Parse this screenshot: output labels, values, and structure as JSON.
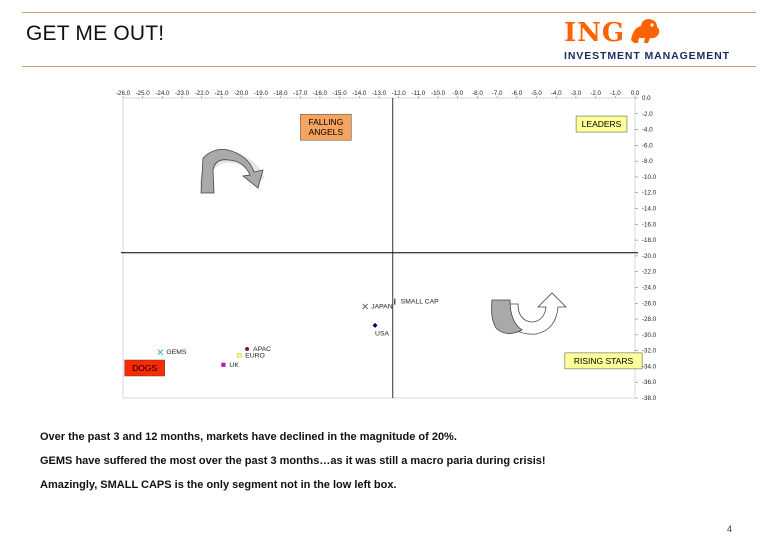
{
  "page": {
    "title": "GET ME OUT!",
    "page_number": "4",
    "rule_color": "#c8a070"
  },
  "logo": {
    "name": "ING",
    "subtitle": "INVESTMENT MANAGEMENT",
    "brand_color": "#ff6200",
    "sub_color": "#1a2c5e",
    "icon": "lion-icon"
  },
  "notes": [
    "Over the past 3 and 12 months, markets have declined in the magnitude of 20%.",
    "GEMS have suffered the most over the past 3 months…as it was still  a macro paria during crisis!",
    "Amazingly, SMALL CAPS is the only segment not in the low left box."
  ],
  "chart_data": {
    "type": "scatter",
    "title": "",
    "xlabel": "",
    "ylabel": "",
    "xlim": [
      -26,
      0
    ],
    "ylim": [
      -38,
      0
    ],
    "x_tick_labels": [
      "-26.0",
      "-25.0",
      "-24.0",
      "-23.0",
      "-22.0",
      "-21.0",
      "-20.0",
      "-19.0",
      "-18.0",
      "-17.0",
      "-16.0",
      "-15.0",
      "-14.0",
      "-13.0",
      "-12.0",
      "-11.0",
      "-10.0",
      "-9.0",
      "-8.0",
      "-7.0",
      "-6.0",
      "-5.0",
      "-4.0",
      "-3.0",
      "-2.0",
      "-1.0",
      "0.0"
    ],
    "y_tick_labels": [
      "0.0",
      "-2.0",
      "-4.0",
      "-6.0",
      "-8.0",
      "-10.0",
      "-12.0",
      "-14.0",
      "-16.0",
      "-18.0",
      "-20.0",
      "-22.0",
      "-24.0",
      "-26.0",
      "-28.0",
      "-30.0",
      "-32.0",
      "-34.0",
      "-36.0",
      "-38.0"
    ],
    "x_axis_crosses_y": -19.6,
    "y_axis_crosses_x": -12.3,
    "grid": false,
    "quadrants": [
      {
        "label_lines": [
          "FALLING",
          "ANGELS"
        ],
        "fill": "#f4a460",
        "x": -15.7,
        "y": -3.7
      },
      {
        "label_lines": [
          "LEADERS"
        ],
        "fill": "#ffff99",
        "x": -1.7,
        "y": -3.3
      },
      {
        "label_lines": [
          "RISING STARS"
        ],
        "fill": "#ffff99",
        "x": -1.6,
        "y": -33.3
      },
      {
        "label_lines": [
          "DOGS"
        ],
        "fill": "#ff2a00",
        "x": -24.9,
        "y": -34.2
      }
    ],
    "points": [
      {
        "name": "SMALL CAP",
        "x": -12.2,
        "y": -25.8,
        "marker": "bar",
        "color": "#3a4a8a"
      },
      {
        "name": "JAPAN",
        "x": -13.7,
        "y": -26.4,
        "marker": "x",
        "color": "#555555"
      },
      {
        "name": "USA",
        "x": -13.2,
        "y": -28.8,
        "marker": "diamond",
        "color": "#000066"
      },
      {
        "name": "APAC",
        "x": -19.7,
        "y": -31.8,
        "marker": "circle",
        "color": "#8b1a1a"
      },
      {
        "name": "EURO",
        "x": -20.1,
        "y": -32.6,
        "marker": "square",
        "color": "#ffff66"
      },
      {
        "name": "GEMS",
        "x": -24.1,
        "y": -32.2,
        "marker": "x",
        "color": "#20b2aa"
      },
      {
        "name": "UK",
        "x": -20.9,
        "y": -33.8,
        "marker": "square",
        "color": "#cc00cc"
      }
    ]
  }
}
